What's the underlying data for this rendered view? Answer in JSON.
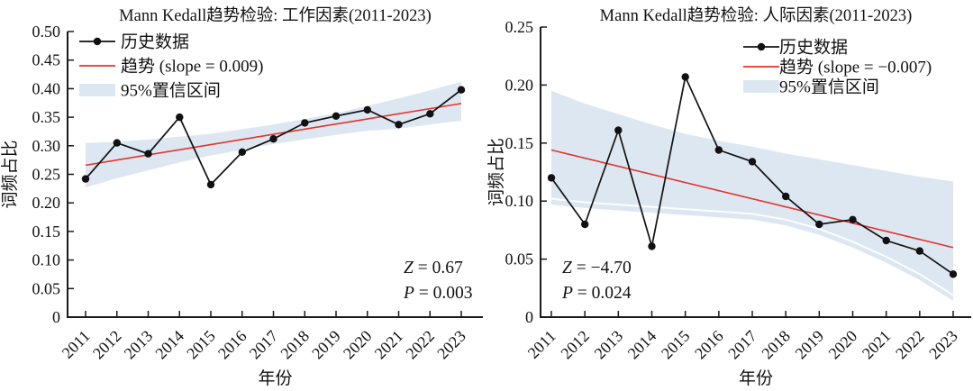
{
  "figure": {
    "colors": {
      "series": "#111111",
      "trend": "#e53229",
      "ci_band": "#dde7f2",
      "axis": "#1a1a1a",
      "text": "#111111"
    }
  },
  "chart_data": [
    {
      "type": "line",
      "title": "Mann Kedall趋势检验: 工作因素(2011-2023)",
      "xlabel": "年份",
      "ylabel": "词频占比",
      "ylim": [
        0,
        0.5
      ],
      "x": [
        2011,
        2012,
        2013,
        2014,
        2015,
        2016,
        2017,
        2018,
        2019,
        2020,
        2021,
        2022,
        2023
      ],
      "xtick_labels": [
        "2011",
        "2012",
        "2013",
        "2014",
        "2015",
        "2016",
        "2017",
        "2018",
        "2019",
        "2020",
        "2021",
        "2022",
        "2023"
      ],
      "ytick_values": [
        0,
        0.05,
        0.1,
        0.15,
        0.2,
        0.25,
        0.3,
        0.35,
        0.4,
        0.45,
        0.5
      ],
      "ytick_labels": [
        "0",
        "0.05",
        "0.10",
        "0.15",
        "0.20",
        "0.25",
        "0.30",
        "0.35",
        "0.40",
        "0.45",
        "0.50"
      ],
      "series": [
        {
          "name": "历史数据",
          "values": [
            0.242,
            0.305,
            0.286,
            0.35,
            0.232,
            0.289,
            0.312,
            0.34,
            0.352,
            0.363,
            0.337,
            0.356,
            0.398
          ]
        }
      ],
      "trend": {
        "label": "趋势 (slope = 0.009)",
        "slope": 0.009,
        "start": 0.266,
        "end": 0.374
      },
      "ci_band": {
        "label": "95%置信区间",
        "upper": [
          0.305,
          0.307,
          0.311,
          0.316,
          0.321,
          0.329,
          0.337,
          0.347,
          0.357,
          0.37,
          0.383,
          0.397,
          0.412
        ],
        "lower": [
          0.227,
          0.243,
          0.257,
          0.271,
          0.283,
          0.293,
          0.303,
          0.311,
          0.319,
          0.326,
          0.33,
          0.337,
          0.344
        ],
        "inner_white_line": false
      },
      "legend_labels": [
        "历史数据",
        "趋势 (slope = 0.009)",
        "95%置信区间"
      ],
      "annotations": [
        {
          "symbol": "Z",
          "rest": " = 0.67"
        },
        {
          "symbol": "P",
          "rest": " = 0.003"
        }
      ]
    },
    {
      "type": "line",
      "title": "Mann Kedall趋势检验: 人际因素(2011-2023)",
      "xlabel": "年份",
      "ylabel": "词频占比",
      "ylim": [
        0,
        0.25
      ],
      "x": [
        2011,
        2012,
        2013,
        2014,
        2015,
        2016,
        2017,
        2018,
        2019,
        2020,
        2021,
        2022,
        2023
      ],
      "xtick_labels": [
        "2011",
        "2012",
        "2013",
        "2014",
        "2015",
        "2016",
        "2017",
        "2018",
        "2019",
        "2020",
        "2021",
        "2022",
        "2023"
      ],
      "ytick_values": [
        0,
        0.05,
        0.1,
        0.15,
        0.2,
        0.25
      ],
      "ytick_labels": [
        "0",
        "0.05",
        "0.10",
        "0.15",
        "0.20",
        "0.25"
      ],
      "series": [
        {
          "name": "历史数据",
          "values": [
            0.12,
            0.08,
            0.161,
            0.061,
            0.207,
            0.144,
            0.134,
            0.104,
            0.08,
            0.084,
            0.066,
            0.057,
            0.037
          ]
        }
      ],
      "trend": {
        "label": "趋势 (slope = −0.007)",
        "slope": -0.007,
        "start": 0.144,
        "end": 0.06
      },
      "ci_band": {
        "label": "95%置信区间",
        "upper": [
          0.195,
          0.184,
          0.175,
          0.166,
          0.158,
          0.152,
          0.147,
          0.141,
          0.136,
          0.131,
          0.126,
          0.121,
          0.117
        ],
        "lower": [
          0.097,
          0.094,
          0.092,
          0.09,
          0.088,
          0.086,
          0.084,
          0.079,
          0.071,
          0.06,
          0.047,
          0.032,
          0.014
        ],
        "inner_white_line": true
      },
      "legend_labels": [
        "历史数据",
        "趋势 (slope = −0.007)",
        "95%置信区间"
      ],
      "annotations": [
        {
          "symbol": "Z",
          "rest": " = −4.70"
        },
        {
          "symbol": "P",
          "rest": " = 0.024"
        }
      ]
    }
  ]
}
